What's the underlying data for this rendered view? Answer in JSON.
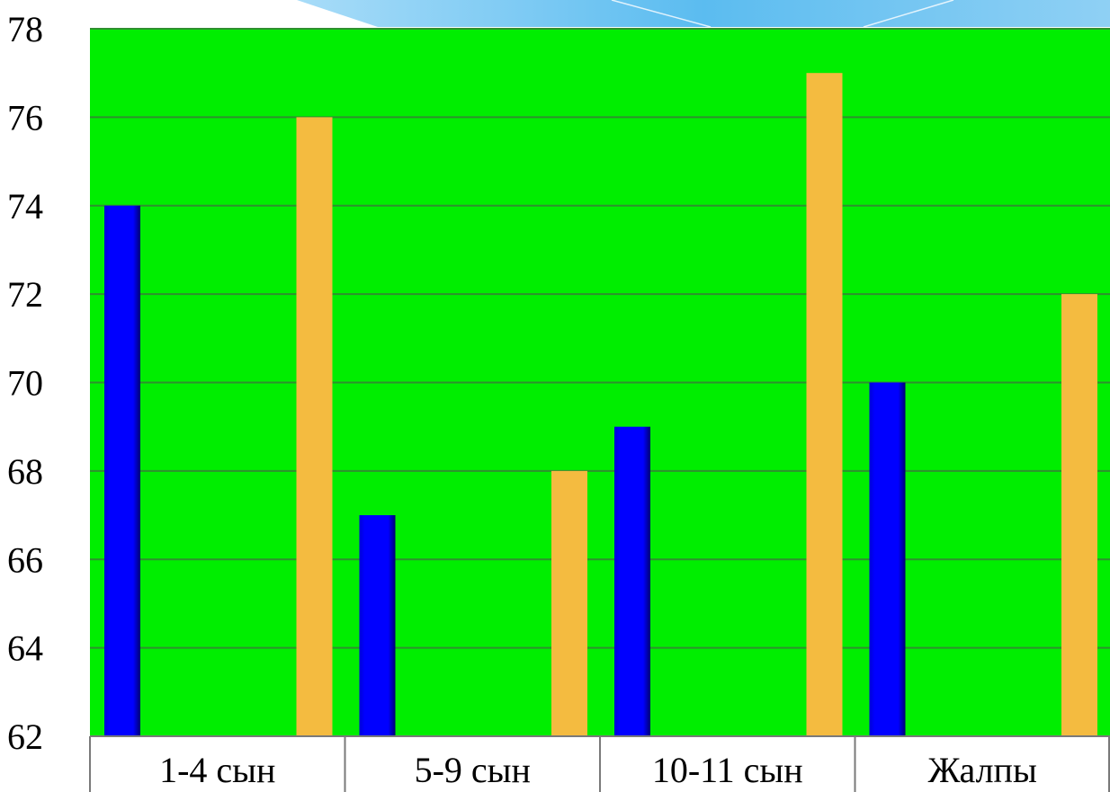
{
  "chart_data": {
    "type": "bar",
    "title": "",
    "xlabel": "",
    "ylabel": "",
    "categories": [
      "1-4 сын",
      "5-9 сын",
      "10-11 сын",
      "Жалпы"
    ],
    "series": [
      {
        "values": [
          74,
          67,
          69,
          70
        ],
        "color": "#0000ff"
      },
      {
        "values": [
          76,
          68,
          77,
          72
        ],
        "color": "#f4bb40"
      }
    ],
    "ylim": [
      62,
      78
    ],
    "yticks": [
      62,
      64,
      66,
      68,
      70,
      72,
      74,
      76,
      78
    ],
    "grid": true,
    "plot_background": "#00ee00",
    "legend": "none"
  }
}
